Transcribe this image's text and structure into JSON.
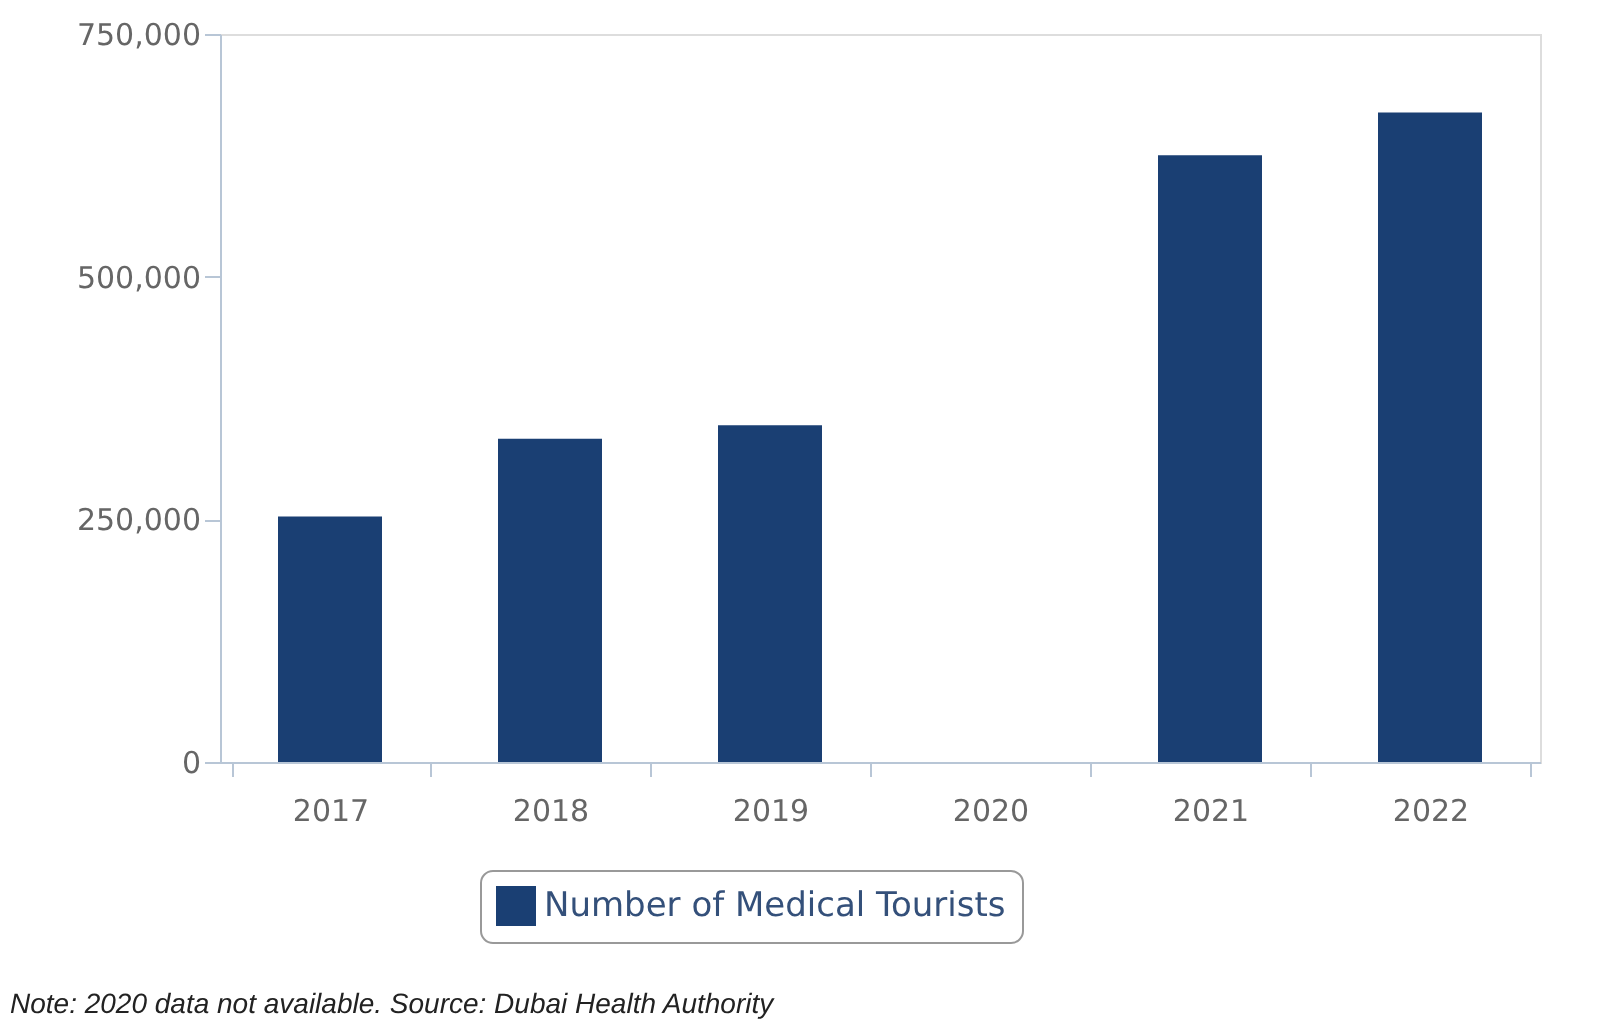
{
  "chart_data": {
    "type": "bar",
    "categories": [
      "2017",
      "2018",
      "2019",
      "2020",
      "2021",
      "2022"
    ],
    "series": [
      {
        "name": "Number of Medical Tourists",
        "color": "#1a3f73",
        "values": [
          253000,
          333000,
          347000,
          null,
          625000,
          669000
        ]
      }
    ],
    "ylim": [
      0,
      750000
    ],
    "yticks": [
      {
        "value": 0,
        "label": "0"
      },
      {
        "value": 250000,
        "label": "250,000"
      },
      {
        "value": 500000,
        "label": "500,000"
      },
      {
        "value": 750000,
        "label": "750,000"
      }
    ],
    "grid": false,
    "legend": "bottom",
    "annotations": [
      "Note: 2020 data not available. Source: Dubai Health Authority"
    ]
  }
}
